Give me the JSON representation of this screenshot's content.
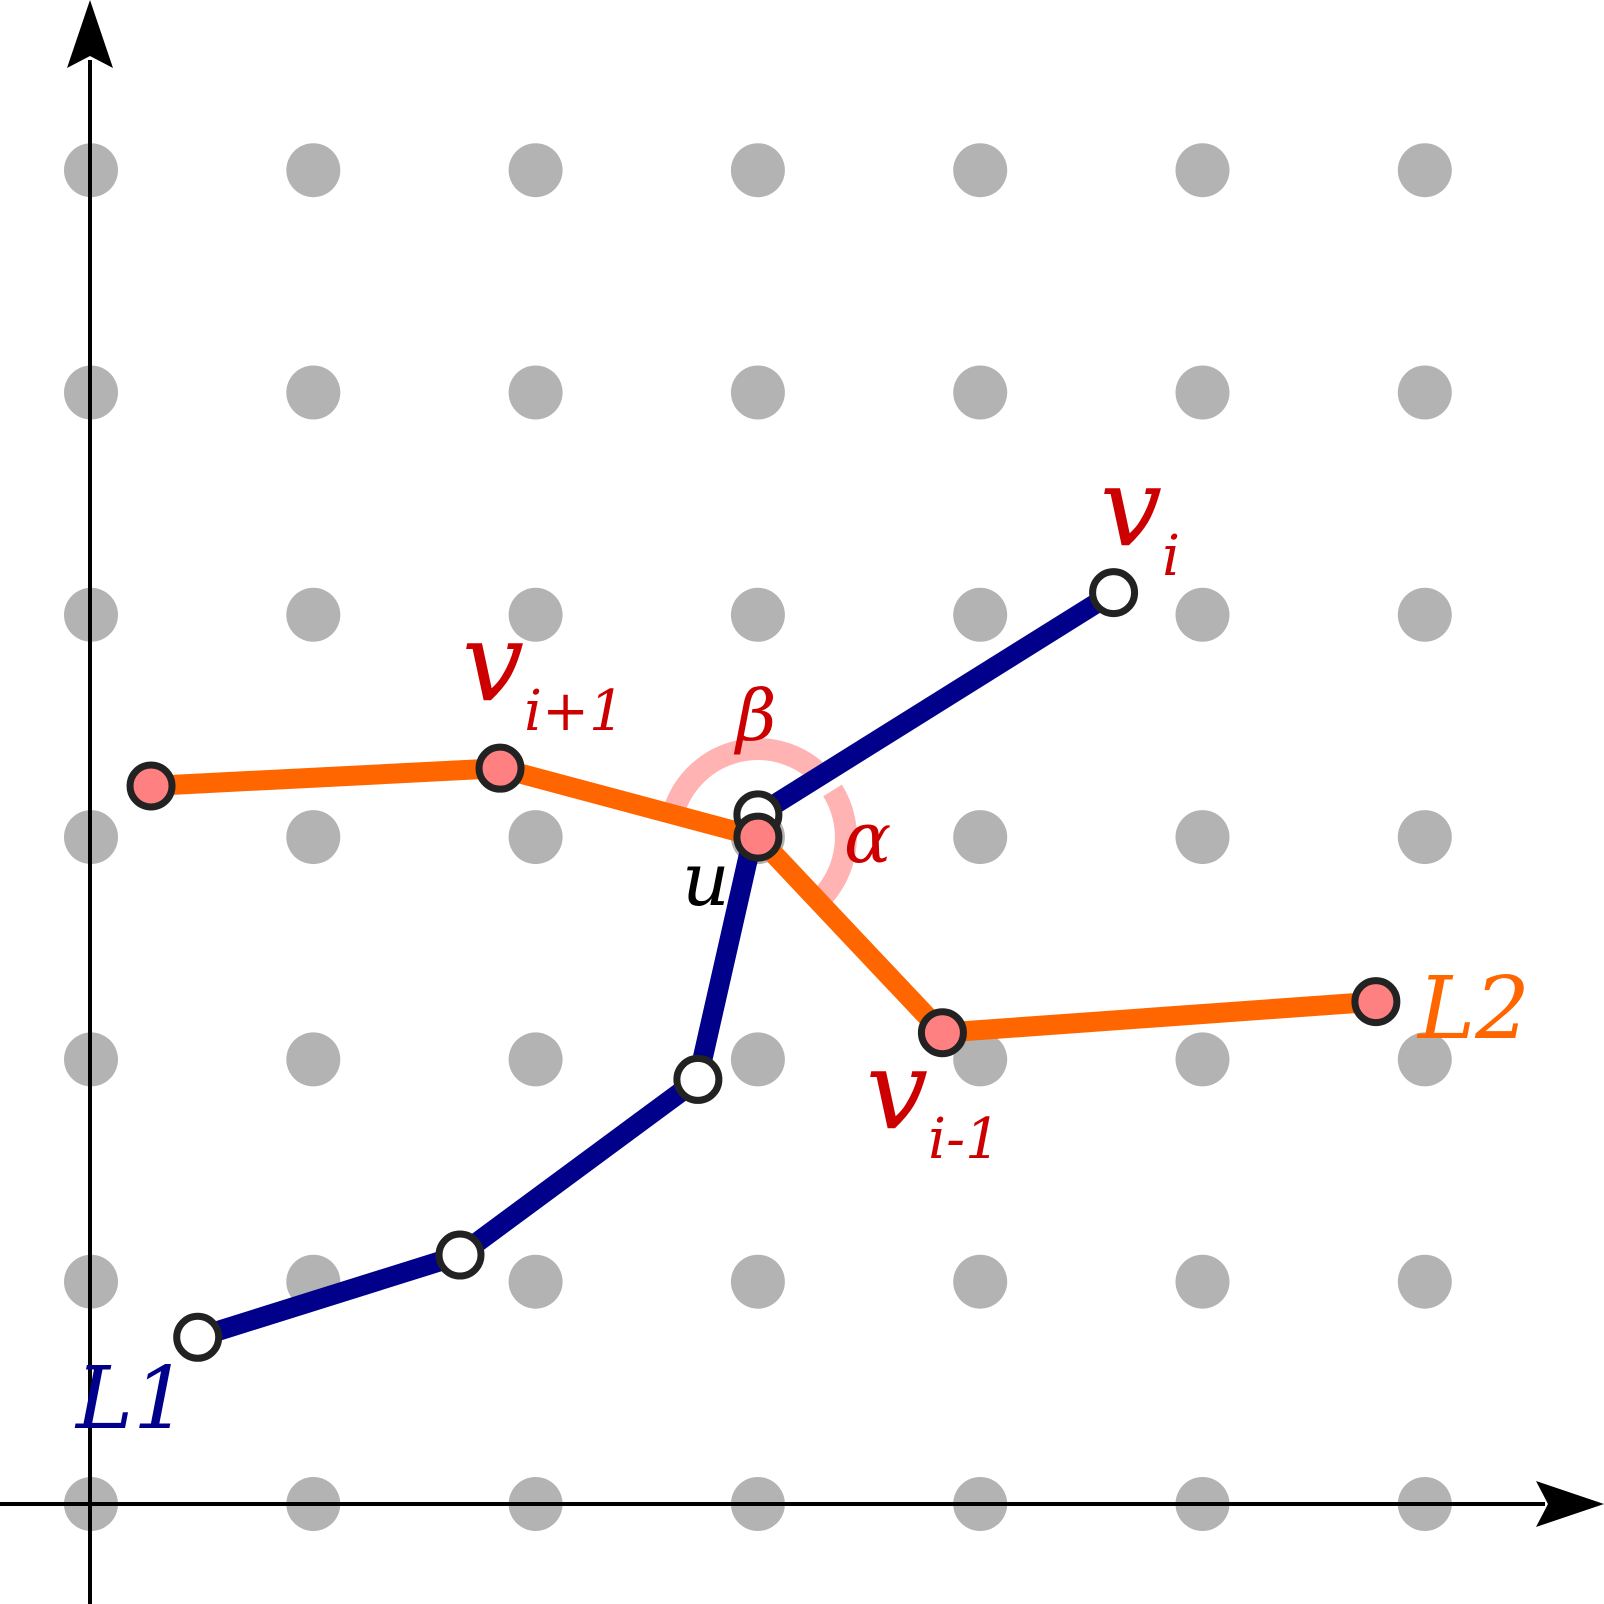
{
  "grid": {
    "columns": 7,
    "rows": 7,
    "dot_color": "#b3b3b3"
  },
  "axes": {
    "color": "#000000"
  },
  "polylines": {
    "L1": {
      "label": "L1",
      "color": "#00008b",
      "vertex_fill": "#ffffff",
      "vertices": [
        [
          0.48,
          0.75
        ],
        [
          1.66,
          1.12
        ],
        [
          2.73,
          1.91
        ],
        [
          3.0,
          3.1
        ],
        [
          4.6,
          4.1
        ]
      ]
    },
    "L2": {
      "label": "L2",
      "color": "#ff6600",
      "vertex_fill": "#ff8080",
      "vertices": [
        [
          0.27,
          3.23
        ],
        [
          1.84,
          3.31
        ],
        [
          3.0,
          3.0
        ],
        [
          3.83,
          2.12
        ],
        [
          5.78,
          2.26
        ]
      ]
    }
  },
  "vertex_stroke": "#222222",
  "angle_arc_color": "#ffb3b3",
  "labels": {
    "L1": "L1",
    "L2": "L2",
    "u": "u",
    "alpha": "α",
    "beta": "β",
    "v_i": {
      "main": "v",
      "sub": "i"
    },
    "v_i_plus_1": {
      "main": "v",
      "sub": "i+1"
    },
    "v_i_minus_1": {
      "main": "v",
      "sub": "i-1"
    }
  },
  "label_colors": {
    "L1": "#00008b",
    "L2": "#ff6600",
    "u": "#000000",
    "vertex_labels": "#cc0000",
    "angles": "#cc0000"
  }
}
